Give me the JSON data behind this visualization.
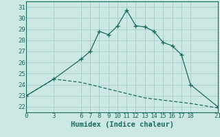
{
  "xlabel": "Humidex (Indice chaleur)",
  "background_color": "#cce8e4",
  "grid_color": "#aacfcb",
  "line_color": "#1a6b5a",
  "xlim": [
    0,
    21
  ],
  "ylim": [
    21.5,
    31.5
  ],
  "yticks": [
    22,
    23,
    24,
    25,
    26,
    27,
    28,
    29,
    30,
    31
  ],
  "xticks": [
    0,
    3,
    6,
    7,
    8,
    9,
    10,
    11,
    12,
    13,
    14,
    15,
    16,
    17,
    18,
    21
  ],
  "line1_x": [
    0,
    3,
    6,
    7,
    8,
    9,
    10,
    11,
    12,
    13,
    14,
    15,
    16,
    17,
    18,
    21
  ],
  "line1_y": [
    23.0,
    24.5,
    26.3,
    27.0,
    28.8,
    28.5,
    29.3,
    30.7,
    29.3,
    29.2,
    28.8,
    27.8,
    27.5,
    26.7,
    24.0,
    22.0
  ],
  "line2_x": [
    0,
    3,
    6,
    7,
    8,
    9,
    10,
    11,
    12,
    13,
    14,
    15,
    16,
    17,
    18,
    21
  ],
  "line2_y": [
    23.0,
    24.5,
    24.2,
    24.0,
    23.8,
    23.6,
    23.4,
    23.2,
    23.0,
    22.8,
    22.7,
    22.6,
    22.5,
    22.4,
    22.3,
    21.9
  ],
  "tick_fontsize": 6.5,
  "label_fontsize": 7.5
}
